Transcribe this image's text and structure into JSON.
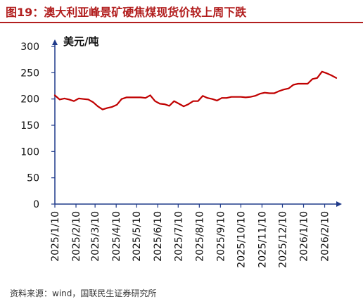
{
  "figure": {
    "title": "图19：澳大利亚峰景矿硬焦煤现货价较上周下跌",
    "source": "资料来源：wind，国联民生证券研究所"
  },
  "colors": {
    "title": "#b21f1f",
    "axis": "#1f3a8a",
    "series": "#c00000"
  },
  "chart_data": {
    "type": "line",
    "title": "",
    "ylabel": "美元/吨",
    "xlabel": "",
    "ylim": [
      0,
      300
    ],
    "yticks": [
      0,
      50,
      100,
      150,
      200,
      250,
      300
    ],
    "grid": false,
    "legend": "none",
    "xticks": [
      "2025/1/10",
      "2025/2/10",
      "2025/3/10",
      "2025/4/10",
      "2025/5/10",
      "2025/6/10",
      "2025/7/10",
      "2025/8/10",
      "2025/9/10",
      "2025/10/10",
      "2025/11/10",
      "2025/12/10",
      "2026/1/10",
      "2026/2/10"
    ],
    "x": [
      "2025/1/10",
      "2025/1/17",
      "2025/1/24",
      "2025/1/31",
      "2025/2/7",
      "2025/2/14",
      "2025/2/21",
      "2025/2/28",
      "2025/3/7",
      "2025/3/14",
      "2025/3/21",
      "2025/3/28",
      "2025/4/4",
      "2025/4/11",
      "2025/4/18",
      "2025/4/25",
      "2025/5/2",
      "2025/5/9",
      "2025/5/16",
      "2025/5/23",
      "2025/5/30",
      "2025/6/6",
      "2025/6/13",
      "2025/6/20",
      "2025/6/27",
      "2025/7/4",
      "2025/7/11",
      "2025/7/18",
      "2025/7/25",
      "2025/8/1",
      "2025/8/8",
      "2025/8/15",
      "2025/8/22",
      "2025/8/29",
      "2025/9/5",
      "2025/9/12",
      "2025/9/19",
      "2025/9/26",
      "2025/10/3",
      "2025/10/10",
      "2025/10/17",
      "2025/10/24",
      "2025/10/31",
      "2025/11/7",
      "2025/11/14",
      "2025/11/21",
      "2025/11/28",
      "2025/12/5",
      "2025/12/12",
      "2025/12/19",
      "2025/12/26",
      "2026/1/2",
      "2026/1/9",
      "2026/1/16",
      "2026/1/23",
      "2026/1/30",
      "2026/2/6",
      "2026/2/13",
      "2026/2/20",
      "2026/2/27"
    ],
    "series": [
      {
        "values": [
          207,
          199,
          201,
          199,
          196,
          201,
          200,
          199,
          194,
          186,
          180,
          183,
          185,
          189,
          200,
          203,
          203,
          203,
          203,
          202,
          207,
          196,
          191,
          190,
          187,
          196,
          191,
          186,
          190,
          196,
          196,
          206,
          202,
          200,
          197,
          202,
          202,
          204,
          204,
          204,
          203,
          204,
          206,
          210,
          212,
          211,
          211,
          215,
          218,
          220,
          227,
          229,
          229,
          229,
          238,
          240,
          252,
          249,
          245,
          240
        ]
      }
    ]
  }
}
